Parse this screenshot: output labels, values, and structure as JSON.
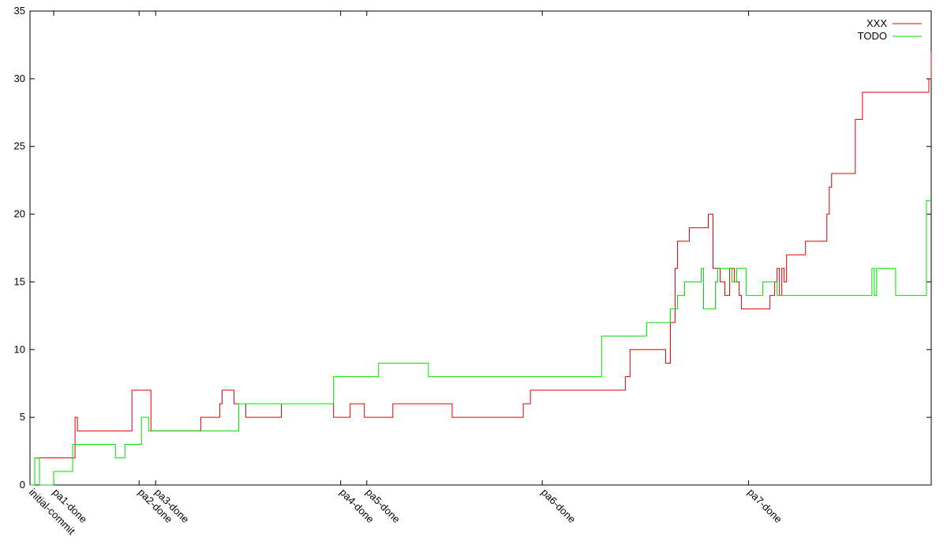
{
  "chart_data": {
    "type": "line",
    "step": true,
    "xlim": [
      0,
      380
    ],
    "ylim": [
      0,
      35
    ],
    "yticks": [
      0,
      5,
      10,
      15,
      20,
      25,
      30,
      35
    ],
    "xticks": [
      {
        "value": 0,
        "label": "initial-commit"
      },
      {
        "value": 10,
        "label": "pa1-done"
      },
      {
        "value": 46,
        "label": "pa2-done"
      },
      {
        "value": 53,
        "label": "pa3-done"
      },
      {
        "value": 131,
        "label": "pa4-done"
      },
      {
        "value": 142,
        "label": "pa5-done"
      },
      {
        "value": 216,
        "label": "pa6-done"
      },
      {
        "value": 303,
        "label": "pa7-done"
      }
    ],
    "legend": "top-right",
    "series": [
      {
        "name": "XXX",
        "color": "#e00000",
        "x": [
          0,
          2,
          19,
          20,
          43,
          51,
          72,
          80,
          81,
          86,
          91,
          106,
          128,
          135,
          141,
          153,
          178,
          208,
          211,
          251,
          253,
          268,
          270,
          272,
          273,
          278,
          286,
          288,
          291,
          293,
          295,
          297,
          299,
          300,
          312,
          314,
          315,
          316,
          317,
          318,
          319,
          327,
          336,
          337,
          338,
          348,
          351,
          379,
          380
        ],
        "values": [
          0,
          2,
          5,
          4,
          7,
          4,
          5,
          6,
          7,
          6,
          5,
          6,
          5,
          6,
          5,
          6,
          5,
          6,
          7,
          8,
          10,
          9,
          12,
          16,
          18,
          19,
          20,
          16,
          15,
          14,
          16,
          15,
          14,
          13,
          14,
          15,
          16,
          14,
          16,
          15,
          17,
          18,
          20,
          22,
          23,
          27,
          29,
          30,
          32
        ]
      },
      {
        "name": "TODO",
        "color": "#00e000",
        "x": [
          0,
          2,
          4,
          10,
          18,
          36,
          40,
          47,
          50,
          88,
          128,
          147,
          168,
          241,
          260,
          270,
          273,
          276,
          283,
          284,
          289,
          290,
          296,
          298,
          302,
          309,
          315,
          355,
          356,
          357,
          365,
          378,
          380
        ],
        "values": [
          0,
          2,
          0,
          1,
          3,
          2,
          3,
          5,
          4,
          6,
          8,
          9,
          8,
          11,
          12,
          13,
          14,
          15,
          16,
          13,
          15,
          16,
          15,
          16,
          14,
          15,
          14,
          16,
          14,
          16,
          14,
          21,
          21
        ]
      }
    ]
  }
}
